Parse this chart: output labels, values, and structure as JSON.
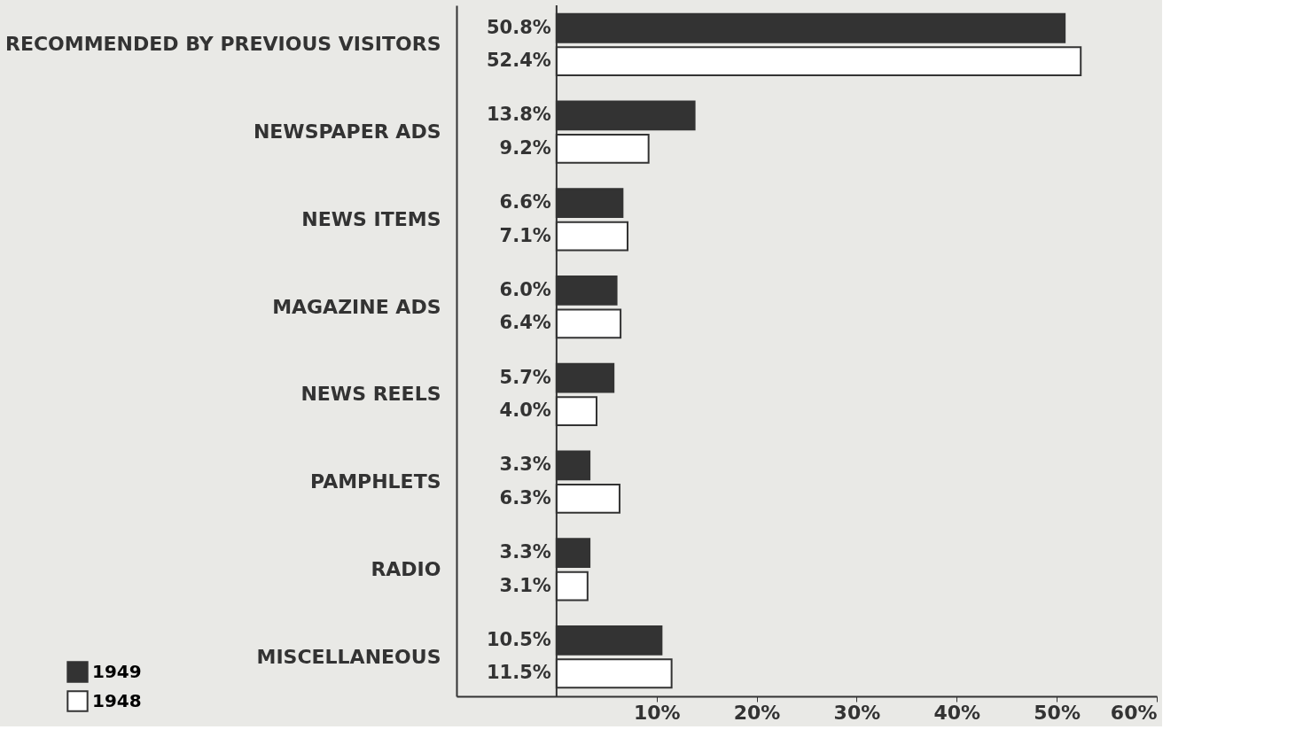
{
  "chart_data": {
    "type": "bar",
    "orientation": "horizontal",
    "categories": [
      "RECOMMENDED BY PREVIOUS VISITORS",
      "NEWSPAPER ADS",
      "NEWS ITEMS",
      "MAGAZINE ADS",
      "NEWS REELS",
      "PAMPHLETS",
      "RADIO",
      "MISCELLANEOUS"
    ],
    "series": [
      {
        "name": "1949",
        "color": "#333333",
        "values": [
          50.8,
          13.8,
          6.6,
          6.0,
          5.7,
          3.3,
          3.3,
          10.5
        ],
        "value_labels": [
          "50.8%",
          "13.8%",
          "6.6%",
          "6.0%",
          "5.7%",
          "3.3%",
          "3.3%",
          "10.5%"
        ]
      },
      {
        "name": "1948",
        "color": "#ffffff",
        "values": [
          52.4,
          9.2,
          7.1,
          6.4,
          4.0,
          6.3,
          3.1,
          11.5
        ],
        "value_labels": [
          "52.4%",
          "9.2%",
          "7.1%",
          "6.4%",
          "4.0%",
          "6.3%",
          "3.1%",
          "11.5%"
        ]
      }
    ],
    "xlim": [
      -10,
      60
    ],
    "xticks": [
      {
        "value": 10,
        "label": "10%"
      },
      {
        "value": 20,
        "label": "20%"
      },
      {
        "value": 30,
        "label": "30%"
      },
      {
        "value": 40,
        "label": "40%"
      },
      {
        "value": 50,
        "label": "50%"
      },
      {
        "value": 60,
        "label": "60%"
      }
    ],
    "ref_lines": [
      {
        "axis": "x",
        "value": 0,
        "label": null,
        "color": "#333333"
      }
    ],
    "grid": false,
    "legend": "bottom left"
  }
}
